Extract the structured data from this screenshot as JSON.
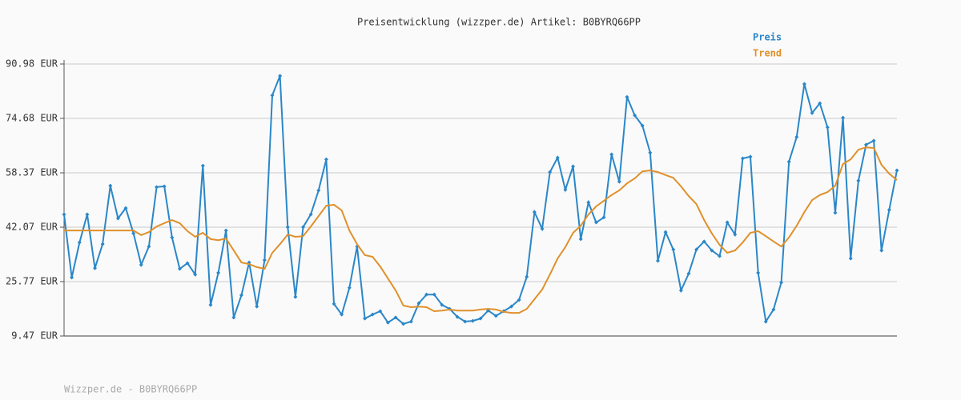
{
  "chart_data": {
    "type": "line",
    "title": "Preisentwicklung (wizzper.de) Artikel: B0BYRQ66PP",
    "footer": "Wizzper.de - B0BYRQ66PP",
    "categories": [
      null,
      null,
      null,
      null,
      null,
      null,
      null,
      null,
      null,
      null,
      null,
      null,
      null,
      null,
      null,
      null,
      null,
      null,
      null,
      null,
      null,
      null,
      null,
      null,
      null,
      null,
      null,
      null,
      null,
      null,
      null,
      null,
      null,
      null,
      null,
      null,
      null,
      null,
      null,
      null,
      null,
      null,
      null,
      null,
      null,
      null,
      null,
      null,
      null,
      null,
      null,
      null,
      null,
      null,
      null,
      null,
      null,
      null,
      null,
      null,
      null,
      null,
      null,
      null,
      null,
      null,
      null,
      null,
      null,
      null,
      null,
      null,
      null,
      null,
      null,
      null,
      null,
      null,
      null,
      null,
      null,
      null,
      null,
      null,
      null,
      null,
      null,
      null,
      null,
      null,
      null,
      null,
      null,
      null,
      null,
      null,
      null,
      null,
      null,
      null,
      null,
      null,
      null,
      null,
      null,
      null,
      null,
      null,
      null
    ],
    "series": [
      {
        "name": "Preis",
        "color": "#2a87c8",
        "markers": true,
        "values": [
          45.9,
          27.0,
          37.5,
          45.9,
          29.8,
          37.0,
          54.5,
          44.7,
          47.8,
          40.2,
          30.8,
          36.3,
          54.1,
          54.3,
          39.0,
          29.6,
          31.3,
          27.9,
          60.5,
          18.8,
          28.4,
          41.1,
          15.0,
          21.7,
          31.5,
          18.3,
          32.2,
          81.6,
          87.4,
          42.1,
          21.2,
          42.1,
          45.9,
          53.1,
          62.4,
          19.1,
          15.9,
          23.9,
          36.3,
          14.7,
          15.9,
          16.9,
          13.5,
          15.0,
          13.1,
          13.8,
          19.3,
          21.9,
          21.9,
          18.8,
          17.6,
          15.2,
          13.8,
          14.0,
          14.7,
          17.1,
          15.5,
          16.9,
          18.3,
          20.3,
          27.2,
          46.6,
          41.6,
          58.6,
          62.9,
          53.3,
          60.3,
          38.5,
          49.5,
          43.5,
          45.0,
          63.9,
          55.7,
          81.1,
          75.6,
          72.5,
          64.4,
          32.0,
          40.6,
          35.4,
          23.1,
          28.2,
          35.4,
          37.8,
          35.1,
          33.4,
          43.5,
          39.9,
          62.7,
          63.2,
          28.4,
          13.8,
          17.4,
          25.5,
          61.7,
          69.1,
          85.0,
          76.3,
          79.2,
          72.0,
          46.4,
          74.9,
          32.7,
          56.0,
          66.8,
          68.0,
          35.1,
          47.3,
          59.1
        ]
      },
      {
        "name": "Trend",
        "color": "#e0902a",
        "markers": false,
        "values": [
          41.1,
          41.1,
          41.1,
          41.1,
          41.1,
          41.1,
          41.1,
          41.1,
          41.1,
          41.1,
          39.7,
          40.6,
          42.3,
          43.3,
          44.2,
          43.3,
          40.9,
          39.2,
          40.4,
          38.5,
          38.2,
          38.7,
          35.1,
          31.5,
          31.0,
          30.1,
          29.6,
          34.4,
          37.0,
          39.9,
          39.2,
          39.4,
          42.3,
          45.4,
          48.5,
          48.8,
          47.1,
          41.1,
          37.0,
          33.7,
          33.2,
          30.3,
          26.7,
          23.1,
          18.6,
          18.1,
          18.3,
          18.1,
          16.9,
          17.1,
          17.4,
          17.1,
          17.1,
          17.1,
          17.4,
          17.6,
          17.4,
          16.7,
          16.4,
          16.4,
          17.6,
          20.5,
          23.4,
          27.9,
          32.7,
          36.1,
          40.4,
          42.5,
          45.9,
          48.3,
          50.0,
          51.7,
          53.1,
          55.2,
          56.7,
          58.8,
          59.1,
          58.6,
          57.7,
          56.9,
          54.3,
          51.4,
          49.0,
          44.2,
          40.2,
          36.8,
          34.4,
          35.1,
          37.5,
          40.4,
          40.9,
          39.4,
          37.8,
          36.3,
          39.0,
          42.5,
          46.6,
          50.2,
          51.7,
          52.6,
          54.5,
          61.0,
          62.4,
          65.3,
          66.0,
          65.8,
          60.8,
          58.1,
          56.2
        ]
      }
    ],
    "ylim": [
      9.47,
      90.98
    ],
    "yticks": [
      {
        "value": 9.47,
        "label": "9.47 EUR"
      },
      {
        "value": 25.77,
        "label": "25.77 EUR"
      },
      {
        "value": 42.07,
        "label": "42.07 EUR"
      },
      {
        "value": 58.37,
        "label": "58.37 EUR"
      },
      {
        "value": 74.68,
        "label": "74.68 EUR"
      },
      {
        "value": 90.98,
        "label": "90.98 EUR"
      }
    ],
    "grid": true,
    "legend": "top-right"
  }
}
